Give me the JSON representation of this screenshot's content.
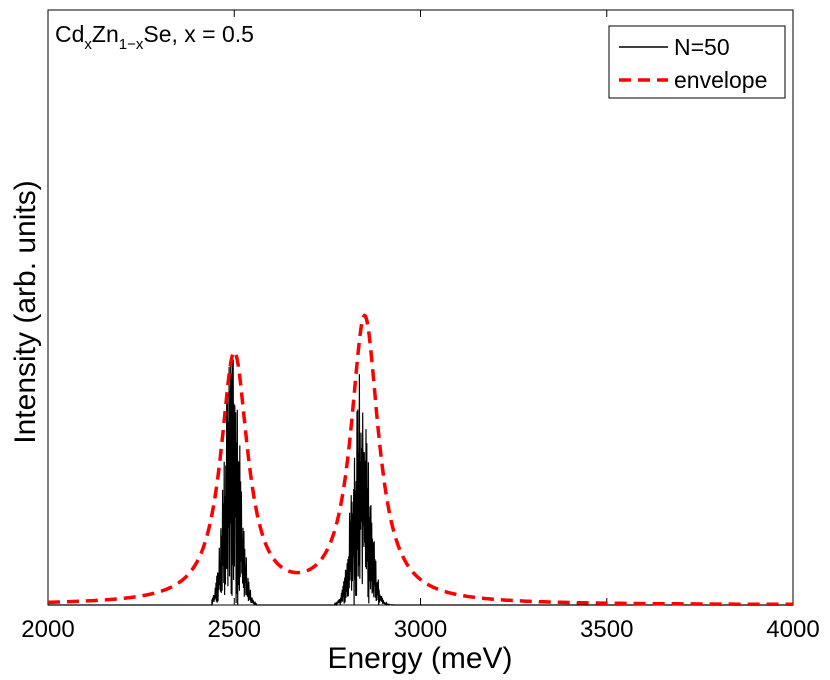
{
  "chart_data": {
    "type": "line",
    "title": "",
    "annotation": {
      "prefix": "Cd",
      "sub1": "x",
      "mid": "Zn",
      "sub2": "1−x",
      "suffix": "Se, x = 0.5"
    },
    "xlabel": "Energy (meV)",
    "ylabel": "Intensity (arb. units)",
    "xlim": [
      2000,
      4000
    ],
    "ylim": [
      0,
      1
    ],
    "x_ticks": [
      2000,
      2500,
      3000,
      3500,
      4000
    ],
    "x_tick_labels": [
      "2000",
      "2500",
      "3000",
      "3500",
      "4000"
    ],
    "grid": false,
    "legend_position": "top-right",
    "series": [
      {
        "name": "N=50",
        "style": "solid",
        "color": "#000000",
        "peaks": [
          {
            "center": 2495,
            "max": 1.0,
            "min_e": 2440,
            "max_e": 2560,
            "sigma": 20
          },
          {
            "center": 2840,
            "max": 0.85,
            "min_e": 2770,
            "max_e": 2940,
            "sigma": 22
          }
        ]
      },
      {
        "name": "envelope",
        "style": "dashed",
        "color": "#ff0000",
        "peaks": [
          {
            "center": 2500,
            "height": 0.87,
            "gamma": 44
          },
          {
            "center": 2850,
            "height": 1.0,
            "gamma": 45
          }
        ]
      }
    ]
  }
}
